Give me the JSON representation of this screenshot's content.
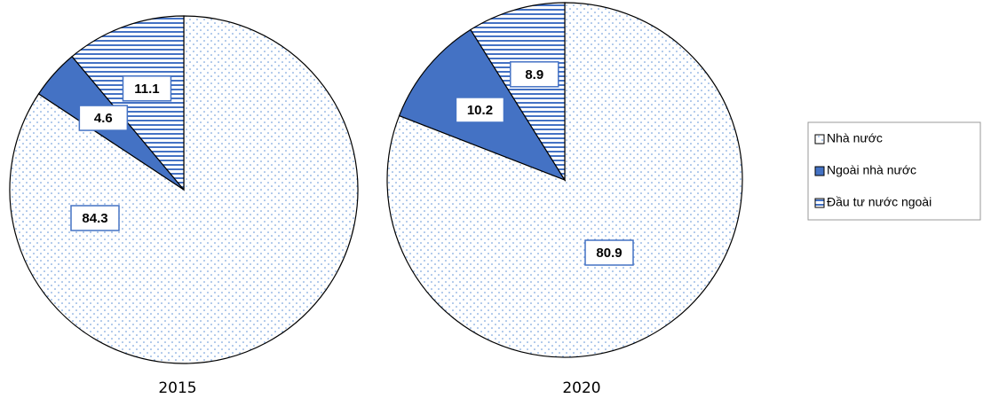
{
  "chart_data": [
    {
      "type": "pie",
      "title": "2015",
      "categories": [
        "Nhà nước",
        "Ngoài nhà nước",
        "Đầu tư nước ngoài"
      ],
      "values": [
        84.3,
        4.6,
        11.1
      ],
      "colors": [
        "#ffffff",
        "#4472c4",
        "#4472c4"
      ],
      "patterns": [
        "dots",
        "solid",
        "stripes"
      ]
    },
    {
      "type": "pie",
      "title": "2020",
      "values": [
        80.9,
        10.2,
        8.9
      ],
      "colors": [
        "#ffffff",
        "#4472c4",
        "#4472c4"
      ],
      "patterns": [
        "dots",
        "solid",
        "stripes"
      ]
    }
  ]
}
